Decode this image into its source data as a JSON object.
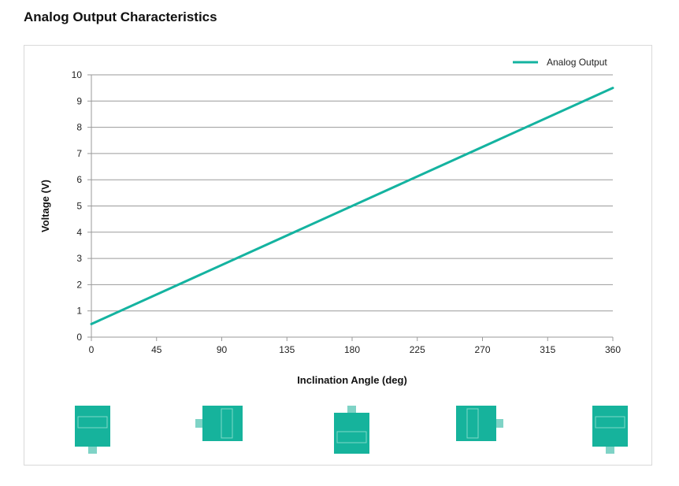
{
  "page": {
    "title": "Analog Output Characteristics"
  },
  "icons": [
    {
      "name": "sensor-orientation-0-icon",
      "connector": "bottom"
    },
    {
      "name": "sensor-orientation-90-icon",
      "connector": "left"
    },
    {
      "name": "sensor-orientation-180-icon",
      "connector": "top"
    },
    {
      "name": "sensor-orientation-270-icon",
      "connector": "right"
    },
    {
      "name": "sensor-orientation-360-icon",
      "connector": "bottom"
    }
  ],
  "colors": {
    "series": "#14b3a0",
    "icon_fill": "#16b39c",
    "icon_connector": "#7fd3c6",
    "gridline": "#9a9a9a"
  },
  "chart_data": {
    "type": "line",
    "title": "",
    "xlabel": "Inclination Angle (deg)",
    "ylabel": "Voltage (V)",
    "xlim": [
      0,
      360
    ],
    "ylim": [
      0,
      10
    ],
    "xticks": [
      0,
      45,
      90,
      135,
      180,
      225,
      270,
      315,
      360
    ],
    "yticks": [
      0,
      1,
      2,
      3,
      4,
      5,
      6,
      7,
      8,
      9,
      10
    ],
    "grid": "horizontal",
    "legend_position": "top-right",
    "series": [
      {
        "name": "Analog Output",
        "x": [
          0,
          360
        ],
        "y": [
          0.5,
          9.5
        ]
      }
    ]
  }
}
